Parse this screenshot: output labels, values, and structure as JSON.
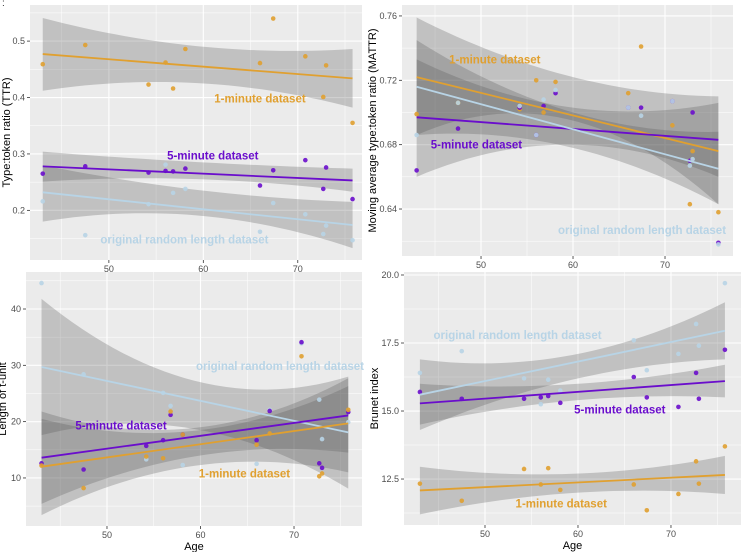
{
  "annotation": ":",
  "colors": {
    "one_minute": "#E0A030",
    "five_minute": "#6A0DCC",
    "original": "#B8D4E6",
    "panel_bg": "#EBEBEB",
    "grid": "#FFFFFF",
    "ribbon": "#555555"
  },
  "chart_data": [
    {
      "type": "scatter",
      "title": "",
      "xlabel": "",
      "ylabel": "Type:token ratio (TTR)",
      "xlim": [
        41.65,
        76.8
      ],
      "ylim": [
        0.112,
        0.564
      ],
      "xticks": [
        50,
        60,
        70
      ],
      "xtick_labels": [
        "50",
        "60",
        "70"
      ],
      "yticks": [
        0.2,
        0.3,
        0.4,
        0.5
      ],
      "ytick_labels": [
        "0.2",
        "0.3",
        "0.4",
        "0.5"
      ],
      "x": [
        43,
        47.5,
        54.2,
        56,
        56.8,
        58.1,
        66,
        67.4,
        70.8,
        72.7,
        73,
        75.8
      ],
      "series": [
        {
          "name": "1-minute dataset",
          "color_key": "one_minute",
          "label_at": [
            66,
            0.398
          ],
          "values": [
            0.459,
            0.493,
            0.423,
            0.462,
            0.416,
            0.486,
            0.461,
            0.54,
            0.473,
            0.401,
            0.457,
            0.355
          ],
          "fit": [
            0.477,
            0.434
          ],
          "ribbon": {
            "x": [
              43,
              60,
              75.8
            ],
            "lower": [
              0.412,
              0.425,
              0.382
            ],
            "upper": [
              0.541,
              0.49,
              0.486
            ]
          }
        },
        {
          "name": "5-minute dataset",
          "color_key": "five_minute",
          "label_at": [
            61,
            0.297
          ],
          "values": [
            0.265,
            0.278,
            0.267,
            0.27,
            0.269,
            0.274,
            0.244,
            0.271,
            0.289,
            0.238,
            0.276,
            0.22
          ],
          "fit": [
            0.278,
            0.253
          ],
          "ribbon": {
            "x": [
              43,
              60,
              75.8
            ],
            "lower": [
              0.251,
              0.255,
              0.233
            ],
            "upper": [
              0.304,
              0.285,
              0.274
            ]
          }
        },
        {
          "name": "original random length dataset",
          "color_key": "original",
          "label_at": [
            58,
            0.148
          ],
          "values": [
            0.216,
            0.156,
            0.211,
            0.281,
            0.231,
            0.238,
            0.162,
            0.213,
            0.193,
            0.158,
            0.173,
            0.147
          ],
          "fit": [
            0.232,
            0.174
          ],
          "ribbon": {
            "x": [
              43,
              60,
              75.8
            ],
            "lower": [
              0.18,
              0.19,
              0.133
            ],
            "upper": [
              0.28,
              0.235,
              0.215
            ]
          }
        }
      ]
    },
    {
      "type": "scatter",
      "title": "",
      "xlabel": "",
      "ylabel": "Moving average type:token ratio (MATTR)",
      "xlim": [
        41.41,
        77.39
      ],
      "ylim": [
        0.6108,
        0.7668
      ],
      "xticks": [
        50,
        60,
        70
      ],
      "xtick_labels": [
        "50",
        "60",
        "70"
      ],
      "yticks": [
        0.64,
        0.68,
        0.72,
        0.76
      ],
      "ytick_labels": [
        "0.64",
        "0.68",
        "0.72",
        "0.76"
      ],
      "x": [
        43,
        47.5,
        54.2,
        56,
        56.8,
        58.1,
        66,
        67.4,
        70.8,
        72.7,
        73,
        75.8
      ],
      "series": [
        {
          "name": "1-minute dataset",
          "color_key": "one_minute",
          "label_at": [
            51.5,
            0.733
          ],
          "values": [
            0.699,
            0.706,
            0.702,
            0.72,
            0.7,
            0.719,
            0.712,
            0.741,
            0.692,
            0.643,
            0.676,
            0.638
          ],
          "fit": [
            0.722,
            0.676
          ],
          "ribbon": {
            "x": [
              43,
              60,
              75.8
            ],
            "lower": [
              0.686,
              0.695,
              0.643
            ],
            "upper": [
              0.759,
              0.722,
              0.71
            ]
          }
        },
        {
          "name": "5-minute dataset",
          "color_key": "five_minute",
          "label_at": [
            49.5,
            0.68
          ],
          "values": [
            0.664,
            0.69,
            0.703,
            0.686,
            0.704,
            0.712,
            0.703,
            0.703,
            0.707,
            0.67,
            0.7,
            0.619
          ],
          "fit": [
            0.697,
            0.683
          ],
          "ribbon": {
            "x": [
              43,
              60,
              75.8
            ],
            "lower": [
              0.66,
              0.68,
              0.66
            ],
            "upper": [
              0.733,
              0.703,
              0.706
            ]
          }
        },
        {
          "name": "original random length dataset",
          "color_key": "original",
          "label_at": [
            67.5,
            0.627
          ],
          "values": [
            0.686,
            0.706,
            0.704,
            0.686,
            0.708,
            0.714,
            0.703,
            0.698,
            0.707,
            0.667,
            0.671,
            0.618
          ],
          "fit": [
            0.716,
            0.665
          ],
          "ribbon": {
            "x": [
              43,
              60,
              75.8
            ],
            "lower": [
              0.686,
              0.678,
              0.643
            ],
            "upper": [
              0.745,
              0.7,
              0.688
            ]
          }
        }
      ]
    },
    {
      "type": "scatter",
      "title": "",
      "xlabel": "Age",
      "ylabel": "Length of t-unit",
      "xlim": [
        41.34,
        77.27
      ],
      "ylim": [
        1.47,
        46.57
      ],
      "xticks": [
        50,
        60,
        70
      ],
      "xtick_labels": [
        "50",
        "60",
        "70"
      ],
      "yticks": [
        10,
        20,
        30,
        40
      ],
      "ytick_labels": [
        "10",
        "20",
        "30",
        "40"
      ],
      "x": [
        43,
        47.5,
        54.2,
        56,
        56.8,
        58.1,
        66,
        67.4,
        70.8,
        72.7,
        73,
        75.8
      ],
      "series": [
        {
          "name": "original random length dataset",
          "color_key": "original",
          "label_at": [
            68.5,
            29.9
          ],
          "values": [
            44.6,
            28.4,
            13.3,
            25.1,
            22.8,
            12.3,
            12.5,
            22.1,
            33.9,
            23.9,
            16.9,
            19.9
          ],
          "fit": [
            29.7,
            18.1
          ],
          "ribbon": {
            "x": [
              43,
              60,
              75.8
            ],
            "lower": [
              17.6,
              18.5,
              8.1
            ],
            "upper": [
              41.8,
              27.0,
              28.0
            ]
          }
        },
        {
          "name": "5-minute dataset",
          "color_key": "five_minute",
          "label_at": [
            51.5,
            19.3
          ],
          "values": [
            12.6,
            11.5,
            15.7,
            16.7,
            21.2,
            17.7,
            16.7,
            21.9,
            34.1,
            12.6,
            11.8,
            21.7
          ],
          "fit": [
            13.6,
            21.1
          ],
          "ribbon": {
            "x": [
              43,
              60,
              75.8
            ],
            "lower": [
              5.4,
              14.0,
              14.5
            ],
            "upper": [
              21.8,
              19.0,
              27.7
            ]
          }
        },
        {
          "name": "1-minute dataset",
          "color_key": "one_minute",
          "label_at": [
            64.7,
            10.8
          ],
          "values": [
            12.2,
            8.2,
            13.8,
            13.5,
            21.8,
            17.7,
            15.9,
            17.9,
            31.6,
            10.3,
            10.8,
            22.1
          ],
          "fit": [
            12.0,
            19.7
          ],
          "ribbon": {
            "x": [
              43,
              60,
              75.8
            ],
            "lower": [
              3.4,
              12.3,
              11.0
            ],
            "upper": [
              20.5,
              18.5,
              26.3
            ]
          }
        }
      ]
    },
    {
      "type": "scatter",
      "title": "",
      "xlabel": "Age",
      "ylabel": "Brunet index",
      "xlim": [
        41.29,
        77.53
      ],
      "ylim": [
        10.81,
        20.11
      ],
      "xticks": [
        50,
        60,
        70
      ],
      "xtick_labels": [
        "50",
        "60",
        "70"
      ],
      "yticks": [
        12.5,
        15.0,
        17.5,
        20.0
      ],
      "ytick_labels": [
        "12.5",
        "15.0",
        "17.5",
        "20.0"
      ],
      "x": [
        43,
        47.5,
        54.2,
        56,
        56.8,
        58.1,
        66,
        67.4,
        70.8,
        72.7,
        73,
        75.8
      ],
      "series": [
        {
          "name": "original random length dataset",
          "color_key": "original",
          "label_at": [
            53.5,
            17.8
          ],
          "values": [
            16.4,
            17.2,
            16.2,
            15.25,
            16.15,
            15.75,
            17.6,
            16.5,
            17.1,
            18.2,
            17.4,
            19.7
          ],
          "fit": [
            15.6,
            17.95
          ],
          "ribbon": {
            "x": [
              43,
              60,
              75.8
            ],
            "lower": [
              14.3,
              16.2,
              16.9
            ],
            "upper": [
              16.9,
              17.1,
              19.0
            ]
          }
        },
        {
          "name": "5-minute dataset",
          "color_key": "five_minute",
          "label_at": [
            64.5,
            15.05
          ],
          "values": [
            15.7,
            15.45,
            15.45,
            15.5,
            15.55,
            15.3,
            16.25,
            15.5,
            15.15,
            16.4,
            15.45,
            17.25
          ],
          "fit": [
            15.28,
            16.1
          ],
          "ribbon": {
            "x": [
              43,
              60,
              75.8
            ],
            "lower": [
              14.5,
              15.4,
              15.5
            ],
            "upper": [
              16.0,
              16.0,
              16.7
            ]
          }
        },
        {
          "name": "1-minute dataset",
          "color_key": "one_minute",
          "label_at": [
            58.2,
            11.6
          ],
          "values": [
            12.33,
            11.7,
            12.87,
            12.3,
            12.9,
            12.1,
            12.3,
            11.35,
            11.95,
            13.15,
            12.33,
            13.7
          ],
          "fit": [
            12.08,
            12.65
          ],
          "ribbon": {
            "x": [
              43,
              60,
              75.8
            ],
            "lower": [
              11.2,
              12.0,
              11.95
            ],
            "upper": [
              12.95,
              12.7,
              13.35
            ]
          }
        }
      ]
    }
  ]
}
